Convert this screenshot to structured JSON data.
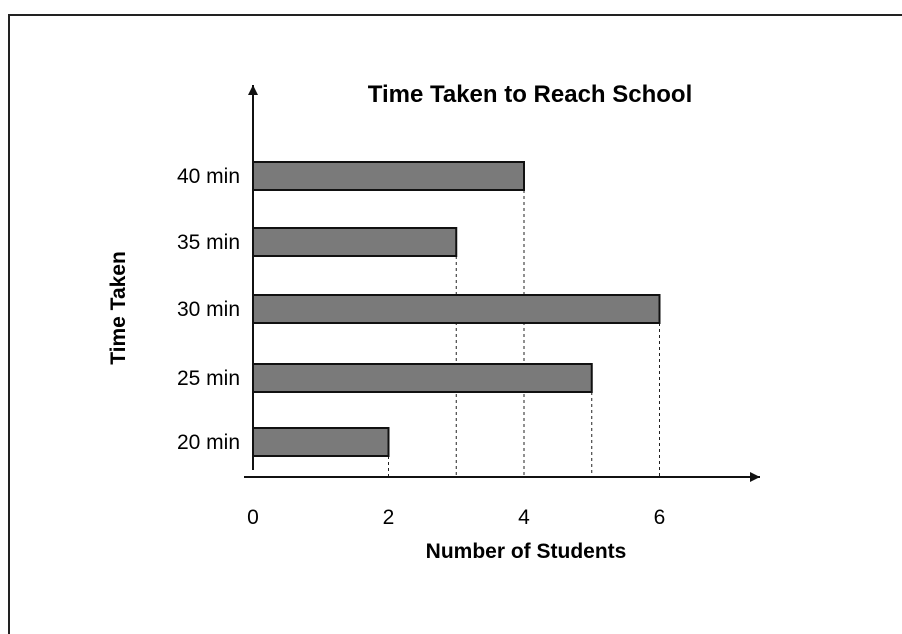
{
  "chart_data": {
    "type": "bar",
    "orientation": "horizontal",
    "title": "Time Taken to Reach School",
    "xlabel": "Number of Students",
    "ylabel": "Time Taken",
    "categories": [
      "20 min",
      "25 min",
      "30 min",
      "35 min",
      "40 min"
    ],
    "values": [
      2,
      5,
      6,
      3,
      4
    ],
    "xlim": [
      0,
      7
    ],
    "xticks": [
      0,
      2,
      4,
      6
    ],
    "grid": false,
    "guide_lines": "dashed",
    "colors": {
      "bar_fill": "#7a7a7a",
      "bar_stroke": "#111111",
      "axis": "#111111"
    }
  }
}
